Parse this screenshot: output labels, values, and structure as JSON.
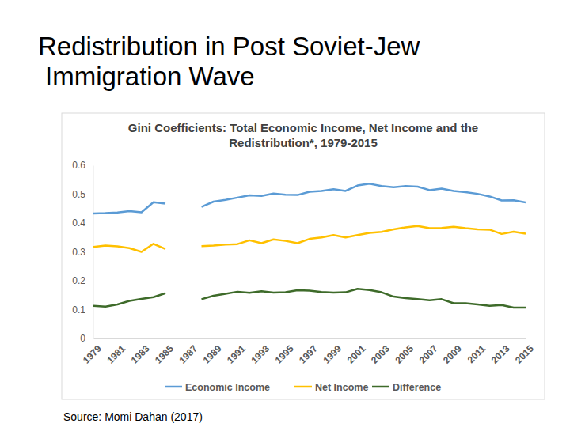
{
  "page": {
    "title": [
      "Redistribution in Post Soviet-Jew",
      "Immigration Wave"
    ]
  },
  "chart_data": {
    "type": "line",
    "title": [
      "Gini Coefficients: Total Economic Income, Net Income and the",
      "Redistribution*, 1979-2015"
    ],
    "annotations": [
      "Source: Momi Dahan (2017)"
    ],
    "x": [
      1979,
      1980,
      1981,
      1982,
      1983,
      1984,
      1985,
      1986,
      1987,
      1988,
      1989,
      1990,
      1991,
      1992,
      1993,
      1994,
      1995,
      1996,
      1997,
      1998,
      1999,
      2000,
      2001,
      2002,
      2003,
      2004,
      2005,
      2006,
      2007,
      2008,
      2009,
      2010,
      2011,
      2012,
      2013,
      2014,
      2015
    ],
    "series": [
      {
        "name": "Economic Income",
        "color": "#5b9bd5",
        "values": [
          0.433,
          0.434,
          0.436,
          0.441,
          0.437,
          0.472,
          0.467,
          null,
          null,
          0.456,
          0.474,
          0.48,
          0.488,
          0.496,
          0.494,
          0.502,
          0.498,
          0.497,
          0.508,
          0.511,
          0.517,
          0.511,
          0.53,
          0.536,
          0.528,
          0.524,
          0.528,
          0.526,
          0.514,
          0.519,
          0.511,
          0.507,
          0.501,
          0.492,
          0.478,
          0.479,
          0.471
        ]
      },
      {
        "name": "Net Income",
        "color": "#ffc000",
        "values": [
          0.317,
          0.322,
          0.319,
          0.313,
          0.3,
          0.328,
          0.31,
          null,
          null,
          0.32,
          0.322,
          0.325,
          0.327,
          0.34,
          0.33,
          0.343,
          0.338,
          0.33,
          0.345,
          0.35,
          0.358,
          0.35,
          0.358,
          0.366,
          0.369,
          0.378,
          0.385,
          0.39,
          0.382,
          0.383,
          0.387,
          0.382,
          0.378,
          0.377,
          0.362,
          0.37,
          0.363
        ]
      },
      {
        "name": "Difference",
        "color": "#3e6b2a",
        "values": [
          0.113,
          0.11,
          0.118,
          0.13,
          0.137,
          0.143,
          0.157,
          null,
          null,
          0.136,
          0.148,
          0.155,
          0.162,
          0.158,
          0.164,
          0.159,
          0.16,
          0.167,
          0.166,
          0.161,
          0.159,
          0.16,
          0.172,
          0.168,
          0.16,
          0.145,
          0.14,
          0.136,
          0.132,
          0.136,
          0.122,
          0.122,
          0.118,
          0.113,
          0.116,
          0.107,
          0.107
        ]
      }
    ],
    "xlim": [
      1979,
      2015
    ],
    "xticks": [
      1979,
      1981,
      1983,
      1985,
      1987,
      1989,
      1991,
      1993,
      1995,
      1997,
      1999,
      2001,
      2003,
      2005,
      2007,
      2009,
      2011,
      2013,
      2015
    ],
    "ylim": [
      0,
      0.6
    ],
    "yticks": [
      0,
      0.1,
      0.2,
      0.3,
      0.4,
      0.5,
      0.6
    ],
    "grid": false,
    "legend": "bottom"
  }
}
